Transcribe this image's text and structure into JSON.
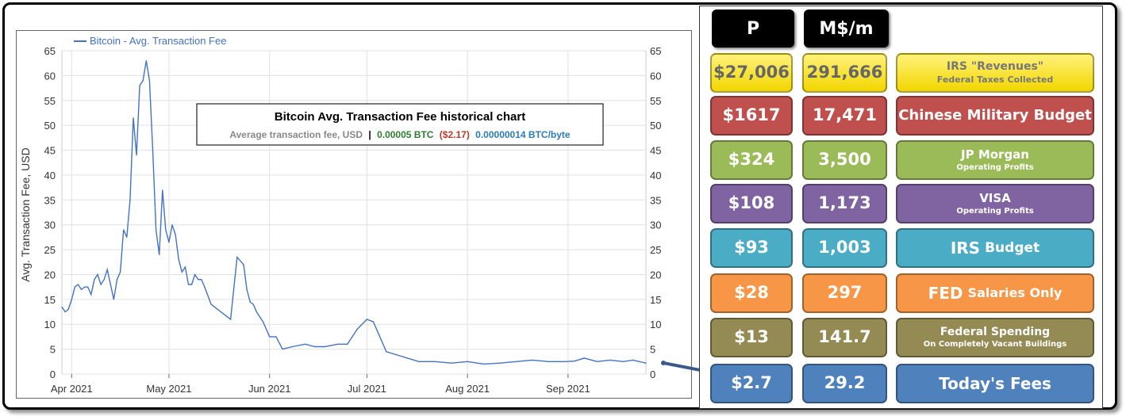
{
  "chart_data": {
    "type": "line",
    "title": "Bitcoin Avg. Transaction Fee historical chart",
    "subtitle": {
      "prefix": "Average transaction fee, USD",
      "separator": "|",
      "btc": "0.00005 BTC",
      "usd": "($2.17)",
      "per_byte": "0.00000014 BTC/byte"
    },
    "ylabel": "Avg. Transaction Fee, USD",
    "legend": "Bitcoin - Avg. Transaction Fee",
    "legend_position": "top-left",
    "ylim": [
      0,
      65
    ],
    "yticks": [
      "0",
      "5",
      "10",
      "15",
      "20",
      "25",
      "30",
      "35",
      "40",
      "45",
      "50",
      "55",
      "60",
      "65"
    ],
    "xticks": [
      "Apr 2021",
      "May 2021",
      "Jun 2021",
      "Jul 2021",
      "Aug 2021",
      "Sep 2021"
    ],
    "xlim": [
      "2021-03-29",
      "2021-09-25"
    ],
    "grid": true,
    "colors": {
      "line": "#4472c4",
      "btc": "#2e7d32",
      "usd": "#c0392b",
      "per_byte": "#2b7bb9",
      "muted": "#888888"
    },
    "series": [
      {
        "name": "Bitcoin - Avg. Transaction Fee",
        "x": [
          "2021-03-29",
          "2021-03-30",
          "2021-03-31",
          "2021-04-01",
          "2021-04-02",
          "2021-04-03",
          "2021-04-04",
          "2021-04-05",
          "2021-04-06",
          "2021-04-07",
          "2021-04-08",
          "2021-04-09",
          "2021-04-10",
          "2021-04-11",
          "2021-04-12",
          "2021-04-13",
          "2021-04-14",
          "2021-04-15",
          "2021-04-16",
          "2021-04-17",
          "2021-04-18",
          "2021-04-19",
          "2021-04-20",
          "2021-04-21",
          "2021-04-22",
          "2021-04-23",
          "2021-04-24",
          "2021-04-25",
          "2021-04-26",
          "2021-04-27",
          "2021-04-28",
          "2021-04-29",
          "2021-04-30",
          "2021-05-01",
          "2021-05-02",
          "2021-05-03",
          "2021-05-04",
          "2021-05-05",
          "2021-05-06",
          "2021-05-07",
          "2021-05-08",
          "2021-05-09",
          "2021-05-10",
          "2021-05-11",
          "2021-05-12",
          "2021-05-14",
          "2021-05-16",
          "2021-05-18",
          "2021-05-20",
          "2021-05-22",
          "2021-05-24",
          "2021-05-25",
          "2021-05-26",
          "2021-05-27",
          "2021-05-28",
          "2021-05-30",
          "2021-06-01",
          "2021-06-03",
          "2021-06-05",
          "2021-06-08",
          "2021-06-12",
          "2021-06-15",
          "2021-06-18",
          "2021-06-22",
          "2021-06-25",
          "2021-06-28",
          "2021-07-01",
          "2021-07-03",
          "2021-07-07",
          "2021-07-12",
          "2021-07-17",
          "2021-07-22",
          "2021-07-27",
          "2021-08-01",
          "2021-08-06",
          "2021-08-11",
          "2021-08-16",
          "2021-08-21",
          "2021-08-26",
          "2021-08-31",
          "2021-09-03",
          "2021-09-06",
          "2021-09-10",
          "2021-09-14",
          "2021-09-18",
          "2021-09-21",
          "2021-09-25"
        ],
        "values": [
          13.5,
          12.5,
          13,
          15,
          17.5,
          18,
          17,
          17.5,
          17.5,
          16,
          19,
          20,
          18,
          19,
          21,
          18,
          15,
          19,
          20.5,
          29,
          27.5,
          35,
          51.5,
          44,
          58,
          59,
          63,
          59,
          45,
          29,
          24,
          37,
          29,
          26.5,
          30,
          28,
          23,
          20.5,
          21.5,
          18,
          18,
          20,
          19,
          19,
          17.5,
          14,
          13,
          12,
          11,
          23.5,
          22,
          17,
          14.5,
          14,
          12.5,
          10.5,
          7.5,
          7.5,
          5,
          5.5,
          6,
          5.5,
          5.5,
          6,
          6,
          9,
          11,
          10.5,
          4.5,
          3.5,
          2.5,
          2.5,
          2.2,
          2.5,
          2,
          2.2,
          2.5,
          2.8,
          2.5,
          2.5,
          2.6,
          3.2,
          2.5,
          2.8,
          2.5,
          2.8,
          2.2
        ]
      }
    ]
  },
  "panel": {
    "header": {
      "p": "P",
      "m": "M$/m"
    },
    "rows": [
      {
        "p": "$27,006",
        "m": "291,666",
        "label_line1": "IRS \"Revenues\"",
        "label_line2": "Federal Taxes Collected",
        "color": "#f5e000"
      },
      {
        "p": "$1617",
        "m": "17,471",
        "label_line1": "Chinese Military Budget",
        "label_line2": "",
        "color": "#c0504d"
      },
      {
        "p": "$324",
        "m": "3,500",
        "label_line1": "JP Morgan",
        "label_line2": "Operating Profits",
        "color": "#9bbb59"
      },
      {
        "p": "$108",
        "m": "1,173",
        "label_line1": "VISA",
        "label_line2": "Operating Profits",
        "color": "#8064a2"
      },
      {
        "p": "$93",
        "m": "1,003",
        "label_line1": "IRS",
        "label_line1b": "Budget",
        "label_line2": "",
        "color": "#4bacc6"
      },
      {
        "p": "$28",
        "m": "297",
        "label_line1": "FED",
        "label_line1b": "Salaries Only",
        "label_line2": "",
        "color": "#f79646"
      },
      {
        "p": "$13",
        "m": "141.7",
        "label_line1": "Federal Spending",
        "label_line2": "On Completely Vacant Buildings",
        "color": "#948a54"
      },
      {
        "p": "$2.7",
        "m": "29.2",
        "label_line1": "Today's Fees",
        "label_line2": "",
        "color": "#4f81bd"
      }
    ]
  }
}
